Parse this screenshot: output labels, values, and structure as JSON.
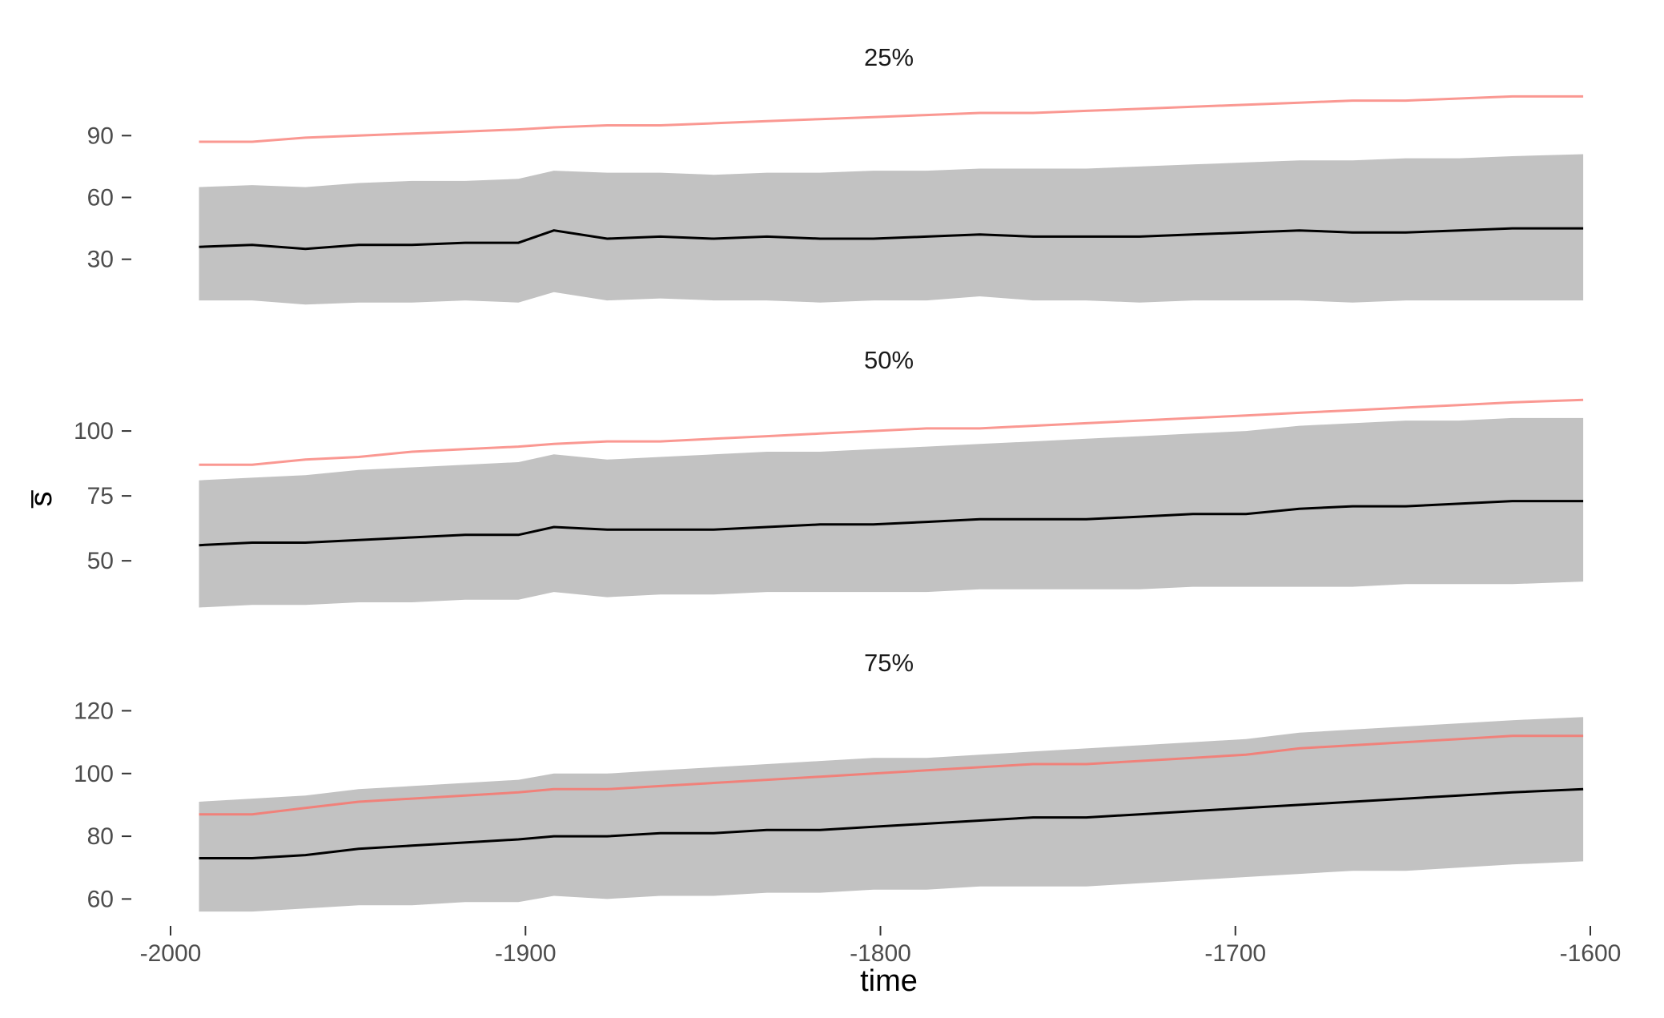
{
  "chart_data": {
    "type": "line",
    "xlabel": "time",
    "ylabel": "s̅",
    "xlim": [
      -2000,
      -1600
    ],
    "x_ticks": [
      -2000,
      -1900,
      -1800,
      -1700,
      -1600
    ],
    "x_tick_labels": [
      "-2000",
      "-1900",
      "-1800",
      "-1700",
      "-1600"
    ],
    "x": [
      -1992,
      -1977,
      -1962,
      -1947,
      -1932,
      -1917,
      -1902,
      -1892,
      -1877,
      -1862,
      -1847,
      -1832,
      -1817,
      -1802,
      -1787,
      -1772,
      -1757,
      -1742,
      -1727,
      -1712,
      -1697,
      -1682,
      -1667,
      -1652,
      -1637,
      -1622,
      -1602
    ],
    "colors": {
      "band": "#c2c2c2",
      "mean_line": "#000000",
      "reference_line": "#f8766d"
    },
    "panels": [
      {
        "title": "25%",
        "ylim": [
          5,
          115
        ],
        "y_ticks": [
          30,
          60,
          90
        ],
        "y_tick_labels": [
          "30",
          "60",
          "90"
        ],
        "mean": [
          36,
          37,
          35,
          37,
          37,
          38,
          38,
          44,
          40,
          41,
          40,
          41,
          40,
          40,
          41,
          42,
          41,
          41,
          41,
          42,
          43,
          44,
          43,
          43,
          44,
          45,
          45
        ],
        "upper": [
          65,
          66,
          65,
          67,
          68,
          68,
          69,
          73,
          72,
          72,
          71,
          72,
          72,
          73,
          73,
          74,
          74,
          74,
          75,
          76,
          77,
          78,
          78,
          79,
          79,
          80,
          81
        ],
        "lower": [
          10,
          10,
          8,
          9,
          9,
          10,
          9,
          14,
          10,
          11,
          10,
          10,
          9,
          10,
          10,
          12,
          10,
          10,
          9,
          10,
          10,
          10,
          9,
          10,
          10,
          10,
          10
        ],
        "reference": [
          87,
          87,
          89,
          90,
          91,
          92,
          93,
          94,
          95,
          95,
          96,
          97,
          98,
          99,
          100,
          101,
          101,
          102,
          103,
          104,
          105,
          106,
          107,
          107,
          108,
          109,
          109
        ]
      },
      {
        "title": "50%",
        "ylim": [
          30,
          117
        ],
        "y_ticks": [
          50,
          75,
          100
        ],
        "y_tick_labels": [
          "50",
          "75",
          "100"
        ],
        "mean": [
          56,
          57,
          57,
          58,
          59,
          60,
          60,
          63,
          62,
          62,
          62,
          63,
          64,
          64,
          65,
          66,
          66,
          66,
          67,
          68,
          68,
          70,
          71,
          71,
          72,
          73,
          73
        ],
        "upper": [
          81,
          82,
          83,
          85,
          86,
          87,
          88,
          91,
          89,
          90,
          91,
          92,
          92,
          93,
          94,
          95,
          96,
          97,
          98,
          99,
          100,
          102,
          103,
          104,
          104,
          105,
          105
        ],
        "lower": [
          32,
          33,
          33,
          34,
          34,
          35,
          35,
          38,
          36,
          37,
          37,
          38,
          38,
          38,
          38,
          39,
          39,
          39,
          39,
          40,
          40,
          40,
          40,
          41,
          41,
          41,
          42
        ],
        "reference": [
          87,
          87,
          89,
          90,
          92,
          93,
          94,
          95,
          96,
          96,
          97,
          98,
          99,
          100,
          101,
          101,
          102,
          103,
          104,
          105,
          106,
          107,
          108,
          109,
          110,
          111,
          112
        ]
      },
      {
        "title": "75%",
        "ylim": [
          55,
          127
        ],
        "y_ticks": [
          60,
          80,
          100,
          120
        ],
        "y_tick_labels": [
          "60",
          "80",
          "100",
          "120"
        ],
        "mean": [
          73,
          73,
          74,
          76,
          77,
          78,
          79,
          80,
          80,
          81,
          81,
          82,
          82,
          83,
          84,
          85,
          86,
          86,
          87,
          88,
          89,
          90,
          91,
          92,
          93,
          94,
          95
        ],
        "upper": [
          91,
          92,
          93,
          95,
          96,
          97,
          98,
          100,
          100,
          101,
          102,
          103,
          104,
          105,
          105,
          106,
          107,
          108,
          109,
          110,
          111,
          113,
          114,
          115,
          116,
          117,
          118
        ],
        "lower": [
          56,
          56,
          57,
          58,
          58,
          59,
          59,
          61,
          60,
          61,
          61,
          62,
          62,
          63,
          63,
          64,
          64,
          64,
          65,
          66,
          67,
          68,
          69,
          69,
          70,
          71,
          72
        ],
        "reference": [
          87,
          87,
          89,
          91,
          92,
          93,
          94,
          95,
          95,
          96,
          97,
          98,
          99,
          100,
          101,
          102,
          103,
          103,
          104,
          105,
          106,
          108,
          109,
          110,
          111,
          112,
          112
        ]
      }
    ]
  }
}
